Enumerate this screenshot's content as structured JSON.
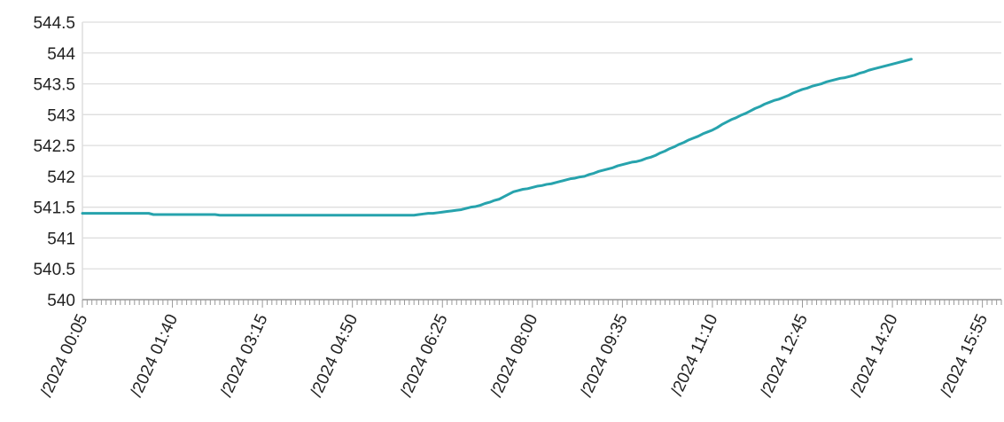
{
  "chart_data": {
    "type": "line",
    "categories": [
      "/2024 00:05",
      null,
      null,
      null,
      null,
      null,
      null,
      null,
      null,
      null,
      null,
      null,
      null,
      null,
      null,
      null,
      null,
      null,
      null,
      "/2024 01:40",
      null,
      null,
      null,
      null,
      null,
      null,
      null,
      null,
      null,
      null,
      null,
      null,
      null,
      null,
      null,
      null,
      null,
      null,
      "/2024 03:15",
      null,
      null,
      null,
      null,
      null,
      null,
      null,
      null,
      null,
      null,
      null,
      null,
      null,
      null,
      null,
      null,
      null,
      null,
      "/2024 04:50",
      null,
      null,
      null,
      null,
      null,
      null,
      null,
      null,
      null,
      null,
      null,
      null,
      null,
      null,
      null,
      null,
      null,
      null,
      "/2024 06:25",
      null,
      null,
      null,
      null,
      null,
      null,
      null,
      null,
      null,
      null,
      null,
      null,
      null,
      null,
      null,
      null,
      null,
      null,
      "/2024 08:00",
      null,
      null,
      null,
      null,
      null,
      null,
      null,
      null,
      null,
      null,
      null,
      null,
      null,
      null,
      null,
      null,
      null,
      null,
      "/2024 09:35",
      null,
      null,
      null,
      null,
      null,
      null,
      null,
      null,
      null,
      null,
      null,
      null,
      null,
      null,
      null,
      null,
      null,
      null,
      "/2024 11:10",
      null,
      null,
      null,
      null,
      null,
      null,
      null,
      null,
      null,
      null,
      null,
      null,
      null,
      null,
      null,
      null,
      null,
      null,
      "/2024 12:45",
      null,
      null,
      null,
      null,
      null,
      null,
      null,
      null,
      null,
      null,
      null,
      null,
      null,
      null,
      null,
      null,
      null,
      null,
      "/2024 14:20",
      null,
      null,
      null,
      null,
      null,
      null,
      null,
      null,
      null,
      null,
      null,
      null,
      null,
      null,
      null,
      null,
      null,
      null,
      "/2024 15:55",
      null,
      null,
      null,
      null
    ],
    "values": [
      541.4,
      541.4,
      541.4,
      541.4,
      541.4,
      541.4,
      541.4,
      541.4,
      541.4,
      541.4,
      541.4,
      541.4,
      541.4,
      541.4,
      541.4,
      541.38,
      541.38,
      541.38,
      541.38,
      541.38,
      541.38,
      541.38,
      541.38,
      541.38,
      541.38,
      541.38,
      541.38,
      541.38,
      541.38,
      541.37,
      541.37,
      541.37,
      541.37,
      541.37,
      541.37,
      541.37,
      541.37,
      541.37,
      541.37,
      541.37,
      541.37,
      541.37,
      541.37,
      541.37,
      541.37,
      541.37,
      541.37,
      541.37,
      541.37,
      541.37,
      541.37,
      541.37,
      541.37,
      541.37,
      541.37,
      541.37,
      541.37,
      541.37,
      541.37,
      541.37,
      541.37,
      541.37,
      541.37,
      541.37,
      541.37,
      541.37,
      541.37,
      541.37,
      541.37,
      541.37,
      541.37,
      541.38,
      541.39,
      541.4,
      541.4,
      541.41,
      541.42,
      541.43,
      541.44,
      541.45,
      541.46,
      541.48,
      541.5,
      541.51,
      541.53,
      541.56,
      541.58,
      541.61,
      541.63,
      541.67,
      541.71,
      541.75,
      541.77,
      541.79,
      541.8,
      541.82,
      541.84,
      541.85,
      541.87,
      541.88,
      541.9,
      541.92,
      541.94,
      541.96,
      541.97,
      541.99,
      542.0,
      542.03,
      542.05,
      542.08,
      542.1,
      542.12,
      542.14,
      542.17,
      542.19,
      542.21,
      542.23,
      542.24,
      542.26,
      542.29,
      542.31,
      542.34,
      542.38,
      542.41,
      542.45,
      542.48,
      542.52,
      542.55,
      542.59,
      542.62,
      542.65,
      542.69,
      542.72,
      542.75,
      542.79,
      542.84,
      542.88,
      542.92,
      542.95,
      542.99,
      543.02,
      543.06,
      543.1,
      543.13,
      543.17,
      543.2,
      543.23,
      543.25,
      543.28,
      543.31,
      543.35,
      543.38,
      543.41,
      543.43,
      543.46,
      543.48,
      543.5,
      543.53,
      543.55,
      543.57,
      543.59,
      543.6,
      543.62,
      543.64,
      543.67,
      543.69,
      543.72,
      543.74,
      543.76,
      543.78,
      543.8,
      543.82,
      543.84,
      543.86,
      543.88,
      543.9,
      null,
      null,
      null,
      null,
      null,
      null,
      null,
      null,
      null,
      null,
      null,
      null,
      null,
      null,
      null,
      null,
      null,
      null,
      null
    ],
    "color": "#27a3ad",
    "ylim": [
      540,
      544.5
    ],
    "yticks": [
      540,
      540.5,
      541,
      541.5,
      542,
      542.5,
      543,
      543.5,
      544,
      544.5
    ],
    "grid": true
  }
}
